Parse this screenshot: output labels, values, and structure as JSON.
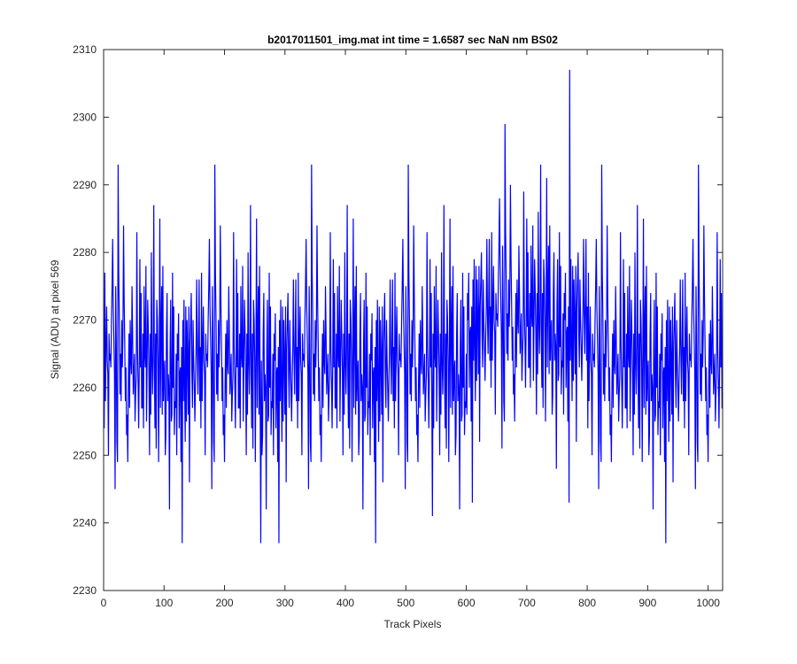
{
  "chart_data": {
    "type": "line",
    "title": "b2017011501_img.mat int time = 1.6587 sec  NaN nm BS02",
    "xlabel": "Track Pixels",
    "ylabel": "Signal (ADU) at pixel 569",
    "xlim": [
      0,
      1024
    ],
    "ylim": [
      2230,
      2310
    ],
    "xticks": [
      0,
      100,
      200,
      300,
      400,
      500,
      600,
      700,
      800,
      900,
      1000
    ],
    "yticks": [
      2230,
      2240,
      2250,
      2260,
      2270,
      2280,
      2290,
      2300,
      2310
    ],
    "grid": false,
    "series": [
      {
        "color": "#0000ff",
        "x_start": 1,
        "x_step": 1,
        "values": [
          2254,
          2277,
          2258,
          2266,
          2272,
          2264,
          2262,
          2250,
          2268,
          2264,
          2265,
          2263,
          2270,
          2275,
          2282,
          2272,
          2267,
          2262,
          2245,
          2275,
          2266,
          2252,
          2249,
          2293,
          2277,
          2270,
          2259,
          2265,
          2258,
          2270,
          2263,
          2268,
          2284,
          2273,
          2266,
          2258,
          2263,
          2253,
          2256,
          2249,
          2261,
          2268,
          2257,
          2270,
          2264,
          2262,
          2275,
          2268,
          2259,
          2262,
          2265,
          2255,
          2259,
          2262,
          2283,
          2266,
          2261,
          2254,
          2263,
          2279,
          2263,
          2274,
          2257,
          2257,
          2268,
          2254,
          2275,
          2265,
          2263,
          2278,
          2255,
          2264,
          2273,
          2268,
          2262,
          2250,
          2268,
          2256,
          2280,
          2264,
          2259,
          2266,
          2287,
          2262,
          2254,
          2268,
          2251,
          2273,
          2270,
          2264,
          2249,
          2265,
          2285,
          2257,
          2269,
          2275,
          2256,
          2278,
          2258,
          2262,
          2264,
          2250,
          2253,
          2268,
          2274,
          2258,
          2262,
          2260,
          2242,
          2266,
          2273,
          2255,
          2256,
          2277,
          2260,
          2272,
          2253,
          2258,
          2257,
          2265,
          2250,
          2268,
          2264,
          2271,
          2254,
          2262,
          2263,
          2249,
          2266,
          2237,
          2270,
          2258,
          2273,
          2260,
          2252,
          2272,
          2255,
          2270,
          2264,
          2256,
          2272,
          2246,
          2266,
          2270,
          2274,
          2262,
          2257,
          2270,
          2264,
          2260,
          2255,
          2261,
          2266,
          2276,
          2265,
          2259,
          2267,
          2276,
          2258,
          2266
        ]
      }
    ],
    "note_only_visible": true
  }
}
